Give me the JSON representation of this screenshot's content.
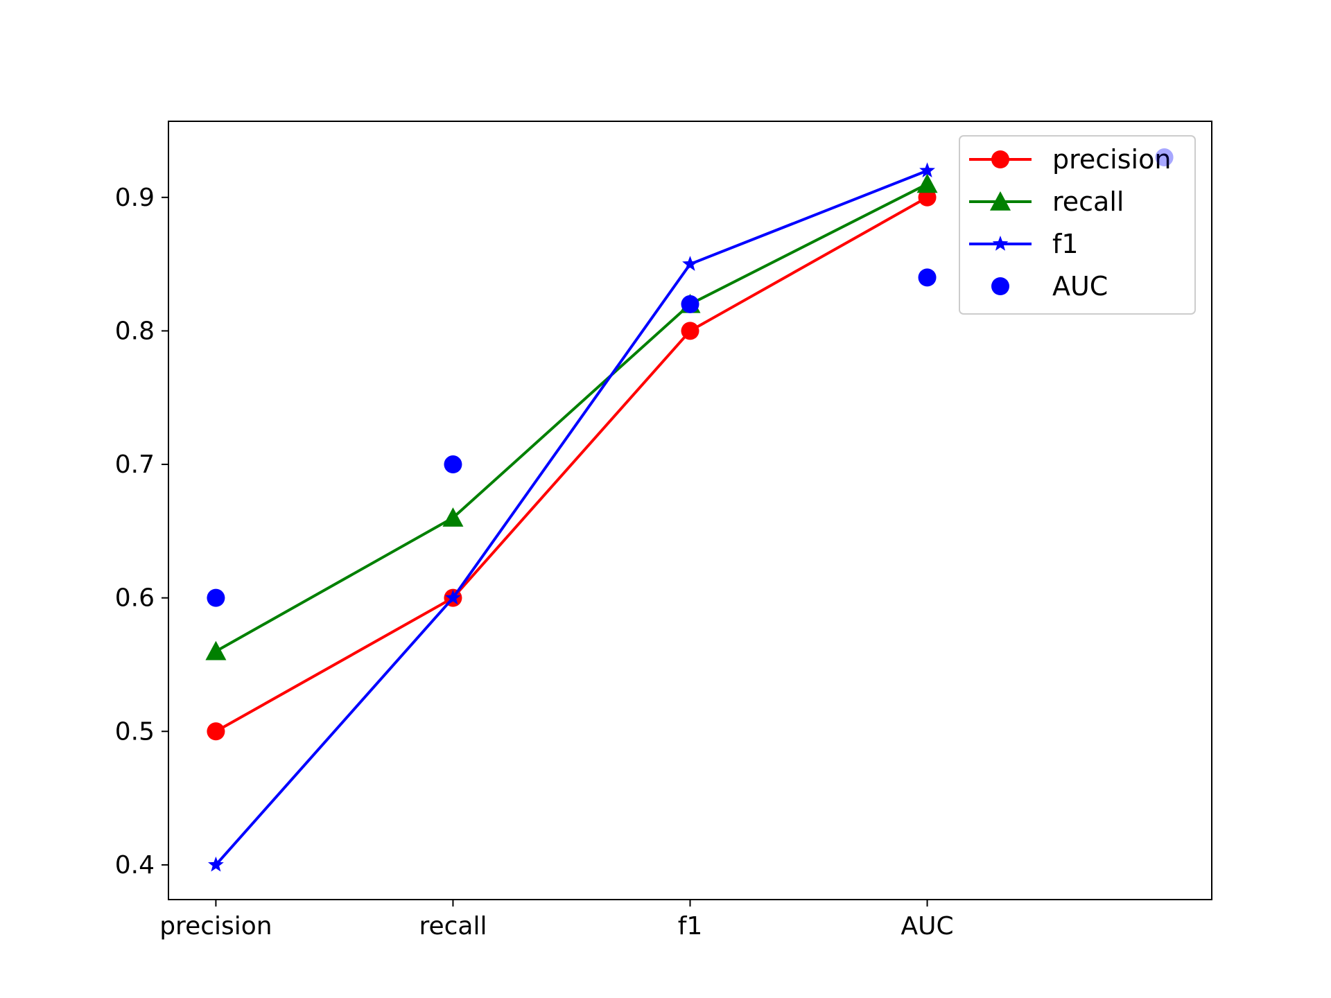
{
  "chart_data": {
    "type": "line",
    "title": "",
    "xlabel": "",
    "ylabel": "",
    "categories": [
      "precision",
      "recall",
      "f1",
      "AUC"
    ],
    "x_positions": [
      0,
      1,
      2,
      3,
      4
    ],
    "xlim": [
      -0.2,
      4.2
    ],
    "ylim": [
      0.374,
      0.957
    ],
    "yticks": [
      0.4,
      0.5,
      0.6,
      0.7,
      0.8,
      0.9
    ],
    "ytick_labels": [
      "0.4",
      "0.5",
      "0.6",
      "0.7",
      "0.8",
      "0.9"
    ],
    "grid": false,
    "legend_position": "top-right",
    "series": [
      {
        "name": "precision",
        "color": "#ff0000",
        "marker": "circle",
        "line": true,
        "x": [
          0,
          1,
          2,
          3
        ],
        "values": [
          0.5,
          0.6,
          0.8,
          0.9
        ]
      },
      {
        "name": "recall",
        "color": "#008000",
        "marker": "triangle",
        "line": true,
        "x": [
          0,
          1,
          2,
          3
        ],
        "values": [
          0.56,
          0.66,
          0.82,
          0.91
        ]
      },
      {
        "name": "f1",
        "color": "#0000ff",
        "marker": "star",
        "line": true,
        "x": [
          0,
          1,
          2,
          3
        ],
        "values": [
          0.4,
          0.6,
          0.85,
          0.92
        ]
      },
      {
        "name": "AUC",
        "color": "#0000ff",
        "marker": "circle",
        "line": false,
        "x": [
          0,
          1,
          2,
          3,
          4
        ],
        "values": [
          0.6,
          0.7,
          0.82,
          0.84,
          0.93
        ]
      }
    ]
  }
}
